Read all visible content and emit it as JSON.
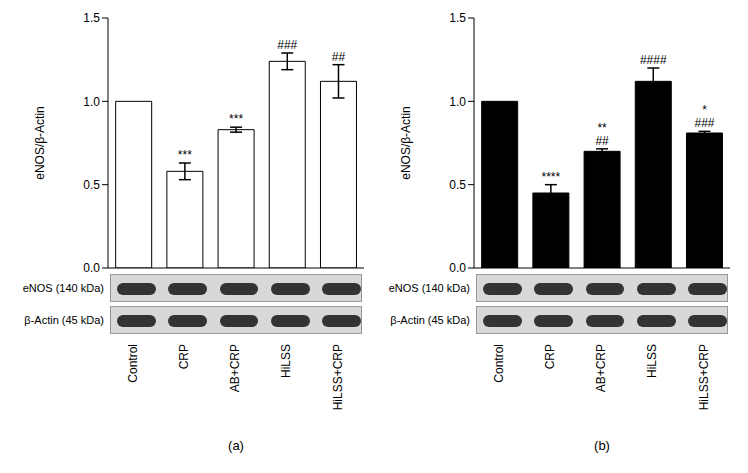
{
  "chart_data": [
    {
      "type": "bar",
      "title": "(a)",
      "y_label": "eNOS/β-Actin",
      "categories": [
        "Control",
        "CRP",
        "AB+CRP",
        "HiLSS",
        "HiLSS+CRP"
      ],
      "values": [
        1.0,
        0.58,
        0.83,
        1.24,
        1.12
      ],
      "errors": [
        0,
        0.05,
        0.015,
        0.05,
        0.1
      ],
      "annotations": [
        [],
        [
          "***"
        ],
        [
          "***"
        ],
        [
          "###"
        ],
        [
          "##"
        ]
      ],
      "color": "#ffffff",
      "ylim": [
        0,
        1.5
      ],
      "yticks": [
        {
          "value": 0,
          "label": "0.0"
        },
        0.5,
        {
          "value": 1,
          "label": "1.0"
        },
        1.5
      ],
      "blot_labels": [
        "eNOS (140 kDa)",
        "β-Actin (45 kDa)"
      ]
    },
    {
      "type": "bar",
      "title": "(b)",
      "y_label": "eNOS/β-Actin",
      "categories": [
        "Control",
        "CRP",
        "AB+CRP",
        "HiLSS",
        "HiLSS+CRP"
      ],
      "values": [
        1.0,
        0.45,
        0.7,
        1.12,
        0.81
      ],
      "errors": [
        0,
        0.05,
        0.015,
        0.08,
        0.01
      ],
      "annotations": [
        [],
        [
          "****"
        ],
        [
          "**",
          "##"
        ],
        [
          "####"
        ],
        [
          "*",
          "###"
        ]
      ],
      "color": "#000000",
      "ylim": [
        0,
        1.5
      ],
      "yticks": [
        {
          "value": 0,
          "label": "0.0"
        },
        0.5,
        {
          "value": 1,
          "label": "1.0"
        },
        1.5
      ],
      "blot_labels": [
        "eNOS (140 kDa)",
        "β-Actin (45 kDa)"
      ]
    }
  ]
}
